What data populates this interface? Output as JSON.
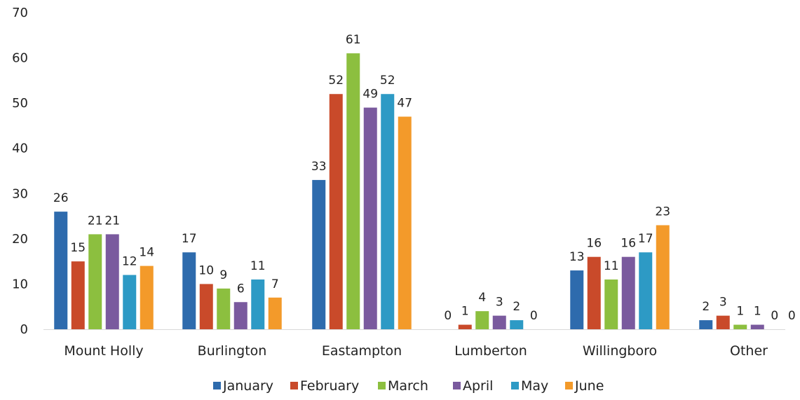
{
  "chart_data": {
    "type": "bar",
    "title": "",
    "xlabel": "",
    "ylabel": "",
    "ylim": [
      0,
      70
    ],
    "yticks": [
      0,
      10,
      20,
      30,
      40,
      50,
      60,
      70
    ],
    "grid": false,
    "legend_position": "bottom",
    "categories": [
      "Mount Holly",
      "Burlington",
      "Eastampton",
      "Lumberton",
      "Willingboro",
      "Other"
    ],
    "series": [
      {
        "name": "January",
        "color": "#2e6bad",
        "values": [
          26,
          17,
          33,
          0,
          13,
          2
        ]
      },
      {
        "name": "February",
        "color": "#c94a2a",
        "values": [
          15,
          10,
          52,
          1,
          16,
          3
        ]
      },
      {
        "name": "March",
        "color": "#8cbf3f",
        "values": [
          21,
          9,
          61,
          4,
          11,
          1
        ]
      },
      {
        "name": "April",
        "color": "#7a5a9e",
        "values": [
          21,
          6,
          49,
          3,
          16,
          1
        ]
      },
      {
        "name": "May",
        "color": "#2d9ac5",
        "values": [
          12,
          11,
          52,
          2,
          17,
          0
        ]
      },
      {
        "name": "June",
        "color": "#f39a2a",
        "values": [
          14,
          7,
          47,
          0,
          23,
          0
        ]
      }
    ]
  }
}
